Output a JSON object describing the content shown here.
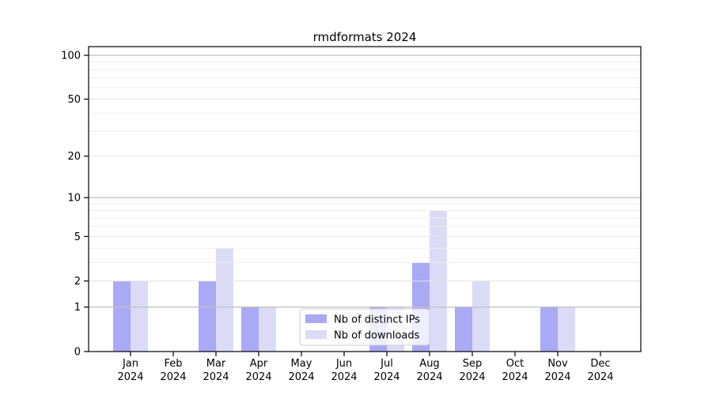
{
  "chart_data": {
    "type": "bar",
    "title": "rmdformats 2024",
    "x_categories": [
      "Jan 2024",
      "Feb 2024",
      "Mar 2024",
      "Apr 2024",
      "May 2024",
      "Jun 2024",
      "Jul 2024",
      "Aug 2024",
      "Sep 2024",
      "Oct 2024",
      "Nov 2024",
      "Dec 2024"
    ],
    "series": [
      {
        "name": "Nb of distinct IPs",
        "color": "#a9a9f5",
        "values": [
          2,
          0,
          2,
          1,
          0,
          0,
          1,
          3,
          1,
          0,
          1,
          0
        ]
      },
      {
        "name": "Nb of downloads",
        "color": "#dbdbf8",
        "values": [
          2,
          0,
          4,
          1,
          0,
          0,
          1,
          8,
          2,
          0,
          1,
          0
        ]
      }
    ],
    "y_axis": {
      "scale": "log1p",
      "tick_values": [
        0,
        1,
        2,
        5,
        10,
        20,
        50,
        100
      ],
      "tick_labels": [
        "0",
        "1",
        "2",
        "5",
        "10",
        "20",
        "50",
        "100"
      ],
      "minor_gridlines": [
        3,
        4,
        6,
        7,
        8,
        9,
        30,
        40,
        60,
        70,
        80,
        90
      ],
      "decade_gridlines": [
        1,
        10,
        100
      ],
      "range_top_value": 115
    },
    "legend": {
      "position": "lower center"
    },
    "grid": true,
    "gridlines_above_bars": true,
    "colors": {
      "background": "#ffffff",
      "axis": "#000000",
      "text": "#000000",
      "decade_gridline": "#c2c2c2",
      "labeled_gridline": "#e4e4e4",
      "minor_gridline": "#efefef",
      "legend_border": "#cccccc",
      "legend_background": "#ffffff"
    }
  }
}
